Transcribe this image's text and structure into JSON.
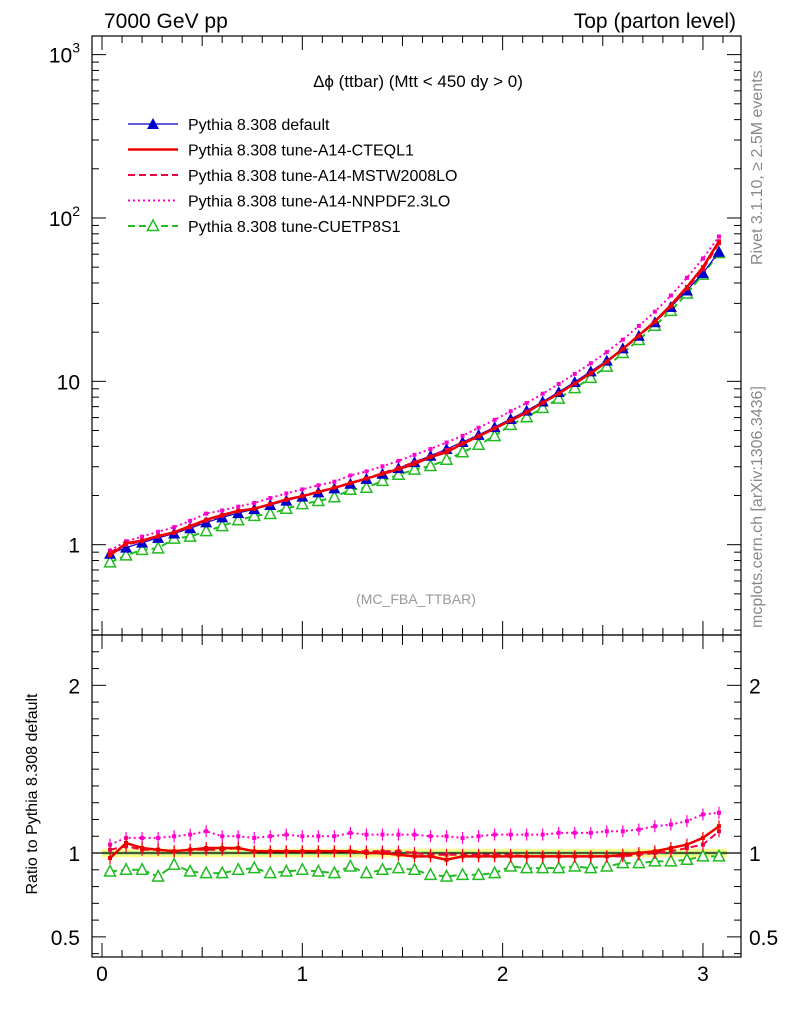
{
  "header": {
    "left": "7000 GeV pp",
    "right": "Top (parton level)"
  },
  "side_labels": {
    "rivet": "Rivet 3.1.10, ≥ 2.5M events",
    "mcplots": "mcplots.cern.ch [arXiv:1306.3436]"
  },
  "chart_data": [
    {
      "type": "line",
      "title": "Δϕ (ttbar) (Mtt < 450 dy > 0)",
      "watermark": "(MC_FBA_TTBAR)",
      "yscale": "log",
      "xlim": [
        -0.05,
        3.19
      ],
      "ylim": [
        0.28,
        1300
      ],
      "x": [
        0.04,
        0.12,
        0.2,
        0.28,
        0.36,
        0.44,
        0.52,
        0.6,
        0.68,
        0.76,
        0.84,
        0.92,
        1.0,
        1.08,
        1.16,
        1.24,
        1.32,
        1.4,
        1.48,
        1.56,
        1.64,
        1.72,
        1.8,
        1.88,
        1.96,
        2.04,
        2.12,
        2.2,
        2.28,
        2.36,
        2.44,
        2.52,
        2.6,
        2.68,
        2.76,
        2.84,
        2.92,
        3.0,
        3.08
      ],
      "yticks": [
        "10^3",
        "10^2",
        "10",
        "1"
      ],
      "xticks": [
        "0",
        "1",
        "2",
        "3"
      ],
      "series": [
        {
          "name": "Pythia 8.308 default",
          "color": "#0000cc",
          "style": "solid-triangle",
          "values": [
            0.88,
            0.96,
            1.03,
            1.1,
            1.17,
            1.26,
            1.37,
            1.47,
            1.56,
            1.65,
            1.75,
            1.86,
            1.97,
            2.09,
            2.21,
            2.36,
            2.53,
            2.72,
            2.94,
            3.2,
            3.5,
            3.85,
            4.25,
            4.7,
            5.24,
            5.88,
            6.62,
            7.52,
            8.6,
            9.9,
            11.5,
            13.4,
            15.9,
            19.0,
            23.0,
            28.5,
            36.0,
            46.0,
            62.0
          ]
        },
        {
          "name": "Pythia 8.308 tune-A14-CTEQL1",
          "color": "#ee0000",
          "style": "solid",
          "values": [
            0.86,
            1.02,
            1.06,
            1.13,
            1.19,
            1.3,
            1.42,
            1.52,
            1.61,
            1.66,
            1.77,
            1.89,
            1.98,
            2.1,
            2.23,
            2.38,
            2.54,
            2.71,
            2.9,
            3.12,
            3.44,
            3.68,
            4.15,
            4.6,
            5.15,
            5.75,
            6.45,
            7.4,
            8.4,
            9.7,
            11.2,
            13.2,
            15.8,
            19.1,
            23.3,
            29.3,
            37.8,
            50.0,
            72.0
          ]
        },
        {
          "name": "Pythia 8.308 tune-A14-MSTW2008LO",
          "color": "#ee0044",
          "style": "dashed",
          "values": [
            0.9,
            1.0,
            1.05,
            1.12,
            1.18,
            1.28,
            1.4,
            1.5,
            1.6,
            1.66,
            1.77,
            1.88,
            1.99,
            2.11,
            2.24,
            2.39,
            2.55,
            2.74,
            2.96,
            3.2,
            3.48,
            3.8,
            4.2,
            4.65,
            5.18,
            5.8,
            6.52,
            7.4,
            8.45,
            9.72,
            11.3,
            13.2,
            15.7,
            18.9,
            23.0,
            28.8,
            37.0,
            48.5,
            70.0
          ]
        },
        {
          "name": "Pythia 8.308 tune-A14-NNPDF2.3LO",
          "color": "#ff00cc",
          "style": "dotted",
          "values": [
            0.92,
            1.05,
            1.12,
            1.2,
            1.28,
            1.4,
            1.55,
            1.62,
            1.71,
            1.8,
            1.93,
            2.06,
            2.18,
            2.31,
            2.43,
            2.65,
            2.81,
            3.02,
            3.26,
            3.55,
            3.85,
            4.22,
            4.64,
            5.2,
            5.81,
            6.56,
            7.37,
            8.4,
            9.63,
            11.1,
            12.9,
            15.1,
            18.0,
            21.8,
            26.7,
            33.5,
            43.0,
            56.5,
            77.0
          ]
        },
        {
          "name": "Pythia 8.308 tune-CUETP8S1",
          "color": "#22bb22",
          "style": "dashed-open-triangle",
          "values": [
            0.78,
            0.86,
            0.93,
            0.95,
            1.09,
            1.12,
            1.21,
            1.3,
            1.41,
            1.5,
            1.54,
            1.66,
            1.77,
            1.85,
            1.95,
            2.17,
            2.23,
            2.46,
            2.68,
            2.88,
            3.03,
            3.31,
            3.68,
            4.09,
            4.62,
            5.41,
            6.03,
            6.87,
            7.84,
            9.08,
            10.5,
            12.3,
            14.9,
            17.9,
            21.9,
            27.0,
            34.5,
            45.0,
            61.0
          ]
        }
      ]
    },
    {
      "type": "line",
      "ylabel": "Ratio to Pythia 8.308 default",
      "ylim": [
        0.38,
        2.3
      ],
      "yticks": [
        "2",
        "1",
        "0.5"
      ],
      "xticks": [
        "0",
        "1",
        "2",
        "3"
      ],
      "band_color": "#ffff88",
      "band_inner_color": "#88dd88",
      "series": [
        {
          "name": "Pythia 8.308 tune-A14-CTEQL1",
          "color": "#ee0000",
          "style": "solid",
          "values": [
            0.97,
            1.06,
            1.03,
            1.02,
            1.01,
            1.02,
            1.03,
            1.03,
            1.03,
            1.01,
            1.01,
            1.01,
            1.01,
            1.01,
            1.01,
            1.01,
            1.0,
            1.0,
            0.99,
            0.98,
            0.98,
            0.96,
            0.98,
            0.98,
            0.98,
            0.98,
            0.98,
            0.98,
            0.98,
            0.98,
            0.98,
            0.98,
            0.99,
            1.0,
            1.01,
            1.03,
            1.05,
            1.09,
            1.16
          ]
        },
        {
          "name": "Pythia 8.308 tune-A14-MSTW2008LO",
          "color": "#ee0044",
          "style": "dashed",
          "values": [
            1.02,
            1.04,
            1.02,
            1.02,
            1.01,
            1.02,
            1.02,
            1.02,
            1.03,
            1.01,
            1.01,
            1.01,
            1.01,
            1.01,
            1.01,
            1.01,
            1.01,
            1.01,
            1.01,
            1.0,
            0.99,
            0.99,
            0.99,
            0.99,
            0.99,
            0.99,
            0.98,
            0.98,
            0.98,
            0.98,
            0.98,
            0.98,
            0.98,
            0.99,
            1.0,
            1.01,
            1.03,
            1.05,
            1.13
          ]
        },
        {
          "name": "Pythia 8.308 tune-A14-NNPDF2.3LO",
          "color": "#ff00cc",
          "style": "dotted",
          "values": [
            1.05,
            1.09,
            1.09,
            1.09,
            1.1,
            1.11,
            1.13,
            1.1,
            1.1,
            1.09,
            1.1,
            1.11,
            1.1,
            1.1,
            1.1,
            1.12,
            1.11,
            1.11,
            1.11,
            1.11,
            1.1,
            1.1,
            1.09,
            1.1,
            1.11,
            1.11,
            1.11,
            1.11,
            1.12,
            1.12,
            1.12,
            1.13,
            1.13,
            1.14,
            1.16,
            1.17,
            1.19,
            1.23,
            1.24
          ]
        },
        {
          "name": "Pythia 8.308 tune-CUETP8S1",
          "color": "#22bb22",
          "style": "dashed-open-triangle",
          "values": [
            0.89,
            0.9,
            0.9,
            0.86,
            0.93,
            0.89,
            0.88,
            0.88,
            0.9,
            0.91,
            0.88,
            0.89,
            0.9,
            0.89,
            0.88,
            0.92,
            0.88,
            0.9,
            0.91,
            0.9,
            0.87,
            0.86,
            0.87,
            0.87,
            0.88,
            0.92,
            0.91,
            0.91,
            0.91,
            0.92,
            0.91,
            0.92,
            0.94,
            0.94,
            0.95,
            0.95,
            0.96,
            0.98,
            0.98
          ]
        }
      ]
    }
  ]
}
